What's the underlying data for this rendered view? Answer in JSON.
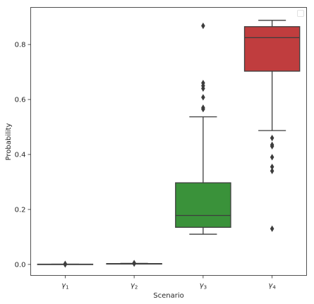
{
  "chart_data": {
    "type": "box",
    "xlabel": "Scenario",
    "ylabel": "Probability",
    "ylim": [
      -0.04,
      0.935
    ],
    "yticks": [
      0.0,
      0.2,
      0.4,
      0.6,
      0.8
    ],
    "ytick_labels": [
      "0.0",
      "0.2",
      "0.4",
      "0.6",
      "0.8"
    ],
    "categories": [
      {
        "sym": "γ",
        "sub": "1"
      },
      {
        "sym": "γ",
        "sub": "2"
      },
      {
        "sym": "γ",
        "sub": "3"
      },
      {
        "sym": "γ",
        "sub": "4"
      }
    ],
    "legend": {
      "visible": true,
      "placement": "top-right",
      "entries": []
    },
    "boxes": [
      {
        "color": "#3a75af",
        "whislo": 0.0,
        "q1": 0.0,
        "med": 0.0,
        "q3": 0.001,
        "whishi": 0.001,
        "fliers": [
          0.0,
          0.001,
          0.002
        ]
      },
      {
        "color": "#ef8636",
        "whislo": 0.002,
        "q1": 0.002,
        "med": 0.003,
        "q3": 0.003,
        "whishi": 0.004,
        "fliers": [
          0.003,
          0.005
        ]
      },
      {
        "color": "#3a923a",
        "whislo": 0.11,
        "q1": 0.135,
        "med": 0.178,
        "q3": 0.297,
        "whishi": 0.537,
        "fliers": [
          0.565,
          0.57,
          0.608,
          0.64,
          0.65,
          0.66,
          0.868
        ]
      },
      {
        "color": "#c03d3e",
        "whislo": 0.487,
        "q1": 0.703,
        "med": 0.825,
        "q3": 0.865,
        "whishi": 0.888,
        "fliers": [
          0.46,
          0.435,
          0.43,
          0.39,
          0.355,
          0.34,
          0.13
        ]
      }
    ]
  }
}
